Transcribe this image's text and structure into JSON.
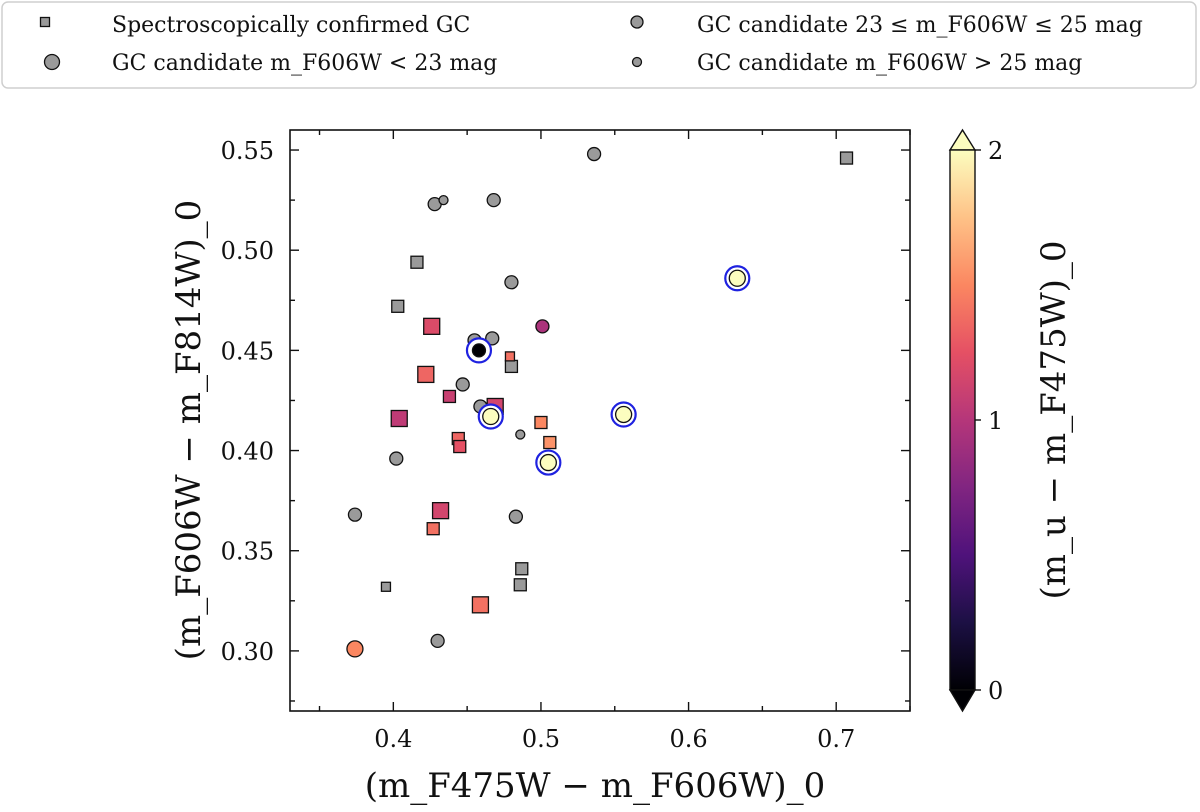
{
  "chart_data": {
    "type": "scatter",
    "xlabel": "(m_F475W − m_F606W)_0",
    "ylabel": "(m_F606W − m_F814W)_0",
    "colorbar_label": "(m_u − m_F475W)_0",
    "xlim": [
      0.33,
      0.75
    ],
    "ylim": [
      0.27,
      0.56
    ],
    "xticks": [
      0.4,
      0.5,
      0.6,
      0.7
    ],
    "xtick_labels": [
      "0.4",
      "0.5",
      "0.6",
      "0.7"
    ],
    "yticks": [
      0.3,
      0.35,
      0.4,
      0.45,
      0.5,
      0.55
    ],
    "ytick_labels": [
      "0.30",
      "0.35",
      "0.40",
      "0.45",
      "0.50",
      "0.55"
    ],
    "colorbar": {
      "range": [
        0,
        2
      ],
      "ticks": [
        0,
        1,
        2
      ],
      "tick_labels": [
        "0",
        "1",
        "2"
      ],
      "colormap": "magma",
      "extend": "both"
    },
    "legend": {
      "placement": "top",
      "entries": [
        {
          "key": "spec",
          "marker": "square",
          "size": "small",
          "label": "Spectroscopically confirmed GC"
        },
        {
          "key": "mid",
          "marker": "circle",
          "size": "medium",
          "label": "GC candidate  23 ≤ m_F606W ≤ 25 mag"
        },
        {
          "key": "bright",
          "marker": "circle",
          "size": "large",
          "label": "GC candidate  m_F606W < 23 mag"
        },
        {
          "key": "faint",
          "marker": "circle",
          "size": "small",
          "label": "GC candidate  m_F606W > 25 mag"
        }
      ]
    },
    "points": [
      {
        "x": 0.707,
        "y": 0.546,
        "marker": "square",
        "size": "medium",
        "color_value": null,
        "highlighted": false
      },
      {
        "x": 0.416,
        "y": 0.494,
        "marker": "square",
        "size": "medium",
        "color_value": null,
        "highlighted": false
      },
      {
        "x": 0.403,
        "y": 0.472,
        "marker": "square",
        "size": "medium",
        "color_value": null,
        "highlighted": false
      },
      {
        "x": 0.48,
        "y": 0.442,
        "marker": "square",
        "size": "medium",
        "color_value": null,
        "highlighted": false
      },
      {
        "x": 0.487,
        "y": 0.341,
        "marker": "square",
        "size": "medium",
        "color_value": null,
        "highlighted": false
      },
      {
        "x": 0.486,
        "y": 0.333,
        "marker": "square",
        "size": "medium",
        "color_value": null,
        "highlighted": false
      },
      {
        "x": 0.395,
        "y": 0.332,
        "marker": "square",
        "size": "small",
        "color_value": null,
        "highlighted": false
      },
      {
        "x": 0.426,
        "y": 0.462,
        "marker": "square",
        "size": "large",
        "color_value": 1.2,
        "highlighted": false
      },
      {
        "x": 0.422,
        "y": 0.438,
        "marker": "square",
        "size": "large",
        "color_value": 1.35,
        "highlighted": false
      },
      {
        "x": 0.438,
        "y": 0.427,
        "marker": "square",
        "size": "medium",
        "color_value": 1.1,
        "highlighted": false
      },
      {
        "x": 0.404,
        "y": 0.416,
        "marker": "square",
        "size": "large",
        "color_value": 1.05,
        "highlighted": false
      },
      {
        "x": 0.469,
        "y": 0.422,
        "marker": "square",
        "size": "large",
        "color_value": 1.15,
        "highlighted": false
      },
      {
        "x": 0.444,
        "y": 0.406,
        "marker": "square",
        "size": "medium",
        "color_value": 1.35,
        "highlighted": false
      },
      {
        "x": 0.445,
        "y": 0.402,
        "marker": "square",
        "size": "medium",
        "color_value": 1.25,
        "highlighted": false
      },
      {
        "x": 0.479,
        "y": 0.447,
        "marker": "square",
        "size": "small",
        "color_value": 1.4,
        "highlighted": false
      },
      {
        "x": 0.5,
        "y": 0.414,
        "marker": "square",
        "size": "medium",
        "color_value": 1.5,
        "highlighted": false
      },
      {
        "x": 0.506,
        "y": 0.404,
        "marker": "square",
        "size": "medium",
        "color_value": 1.55,
        "highlighted": false
      },
      {
        "x": 0.432,
        "y": 0.37,
        "marker": "square",
        "size": "large",
        "color_value": 1.15,
        "highlighted": false
      },
      {
        "x": 0.427,
        "y": 0.361,
        "marker": "square",
        "size": "medium",
        "color_value": 1.4,
        "highlighted": false
      },
      {
        "x": 0.459,
        "y": 0.323,
        "marker": "square",
        "size": "large",
        "color_value": 1.4,
        "highlighted": false
      },
      {
        "x": 0.536,
        "y": 0.548,
        "marker": "circle",
        "size": "medium",
        "color_value": null,
        "highlighted": false
      },
      {
        "x": 0.428,
        "y": 0.523,
        "marker": "circle",
        "size": "medium",
        "color_value": null,
        "highlighted": false
      },
      {
        "x": 0.434,
        "y": 0.525,
        "marker": "circle",
        "size": "small",
        "color_value": null,
        "highlighted": false
      },
      {
        "x": 0.468,
        "y": 0.525,
        "marker": "circle",
        "size": "medium",
        "color_value": null,
        "highlighted": false
      },
      {
        "x": 0.48,
        "y": 0.484,
        "marker": "circle",
        "size": "medium",
        "color_value": null,
        "highlighted": false
      },
      {
        "x": 0.467,
        "y": 0.456,
        "marker": "circle",
        "size": "medium",
        "color_value": null,
        "highlighted": false
      },
      {
        "x": 0.455,
        "y": 0.455,
        "marker": "circle",
        "size": "medium",
        "color_value": null,
        "highlighted": false
      },
      {
        "x": 0.447,
        "y": 0.433,
        "marker": "circle",
        "size": "medium",
        "color_value": null,
        "highlighted": false
      },
      {
        "x": 0.459,
        "y": 0.422,
        "marker": "circle",
        "size": "medium",
        "color_value": null,
        "highlighted": false
      },
      {
        "x": 0.402,
        "y": 0.396,
        "marker": "circle",
        "size": "medium",
        "color_value": null,
        "highlighted": false
      },
      {
        "x": 0.486,
        "y": 0.408,
        "marker": "circle",
        "size": "small",
        "color_value": null,
        "highlighted": false
      },
      {
        "x": 0.374,
        "y": 0.368,
        "marker": "circle",
        "size": "medium",
        "color_value": null,
        "highlighted": false
      },
      {
        "x": 0.483,
        "y": 0.367,
        "marker": "circle",
        "size": "medium",
        "color_value": null,
        "highlighted": false
      },
      {
        "x": 0.43,
        "y": 0.305,
        "marker": "circle",
        "size": "medium",
        "color_value": null,
        "highlighted": false
      },
      {
        "x": 0.501,
        "y": 0.462,
        "marker": "circle",
        "size": "medium",
        "color_value": 0.95,
        "highlighted": false
      },
      {
        "x": 0.374,
        "y": 0.301,
        "marker": "circle",
        "size": "large",
        "color_value": 1.5,
        "highlighted": false
      },
      {
        "x": 0.458,
        "y": 0.45,
        "marker": "circle",
        "size": "medium",
        "color_value": 0.0,
        "highlighted": true
      },
      {
        "x": 0.466,
        "y": 0.417,
        "marker": "circle",
        "size": "large",
        "color_value": 2.0,
        "highlighted": true
      },
      {
        "x": 0.505,
        "y": 0.394,
        "marker": "circle",
        "size": "large",
        "color_value": 2.0,
        "highlighted": true
      },
      {
        "x": 0.556,
        "y": 0.418,
        "marker": "circle",
        "size": "large",
        "color_value": 2.0,
        "highlighted": true
      },
      {
        "x": 0.633,
        "y": 0.486,
        "marker": "circle",
        "size": "large",
        "color_value": 2.0,
        "highlighted": true
      }
    ]
  }
}
